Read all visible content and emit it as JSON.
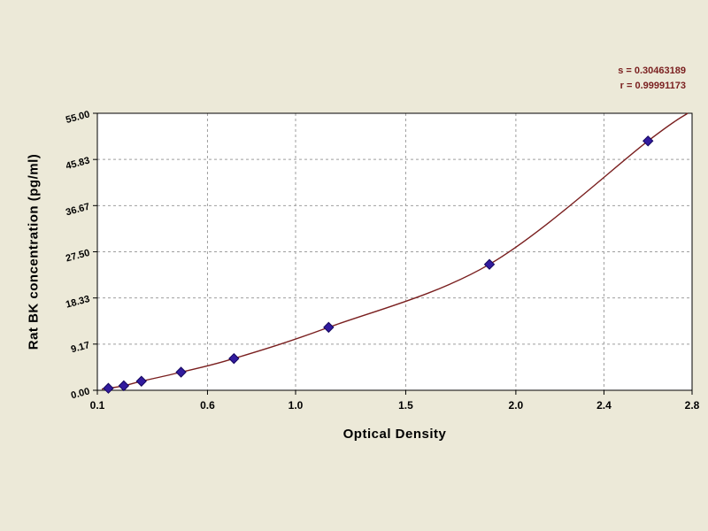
{
  "annotations": {
    "s_label": "s = 0.30463189",
    "r_label": "r = 0.99991173"
  },
  "chart_data": {
    "type": "scatter",
    "title": "",
    "xlabel": "Optical Density",
    "ylabel": "Rat BK concentration (pg/ml)",
    "xlim": [
      0.1,
      2.8
    ],
    "ylim": [
      0.0,
      55.0
    ],
    "grid": true,
    "legend": "none",
    "x_ticks": [
      0.1,
      0.6,
      1.0,
      1.5,
      2.0,
      2.4,
      2.8
    ],
    "x_tick_labels": [
      "0.1",
      "0.6",
      "1.0",
      "1.5",
      "2.0",
      "2.4",
      "2.8"
    ],
    "y_ticks": [
      0.0,
      9.17,
      18.33,
      27.5,
      36.67,
      45.83,
      55.0
    ],
    "y_tick_labels": [
      "0.00",
      "9.17",
      "18.33",
      "27.50",
      "36.67",
      "45.83",
      "55.00"
    ],
    "points": [
      [
        0.15,
        0.4
      ],
      [
        0.22,
        0.9
      ],
      [
        0.3,
        1.8
      ],
      [
        0.48,
        3.6
      ],
      [
        0.72,
        6.3
      ],
      [
        1.15,
        12.5
      ],
      [
        1.88,
        25.0
      ],
      [
        2.6,
        49.5
      ]
    ],
    "curve": [
      [
        0.12,
        0.25
      ],
      [
        0.15,
        0.4
      ],
      [
        0.22,
        0.9
      ],
      [
        0.3,
        1.8
      ],
      [
        0.48,
        3.6
      ],
      [
        0.72,
        6.3
      ],
      [
        1.15,
        12.5
      ],
      [
        1.88,
        25.0
      ],
      [
        2.6,
        49.5
      ],
      [
        2.78,
        55.0
      ]
    ],
    "colors": {
      "background": "#ece9d8",
      "plot_background": "#ffffff",
      "grid": "#9e9e9e",
      "curve": "#7a1f1f",
      "point": "#321b9e",
      "point_edge": "#14065e",
      "axis": "#000000"
    }
  }
}
